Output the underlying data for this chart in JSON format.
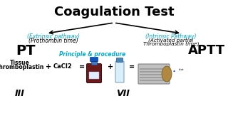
{
  "title": "Coagulation Test",
  "title_fontsize": 13,
  "title_fontweight": "bold",
  "title_color": "#000000",
  "bg_color": "#ffffff",
  "cyan_color": "#00AACC",
  "black_color": "#000000",
  "left_pathway_label": "(Extrinsic pathway)",
  "left_pathway_sub": "(Prothombin time)",
  "left_abbr": "PT",
  "right_pathway_label": "(Intrinsic Pathway)",
  "right_pathway_sub1": "(Activated partial",
  "right_pathway_sub2": "Thromboplastin time)",
  "right_abbr": "APTT",
  "principle_label": "Principle & procedure",
  "tissue_line1": "Tissue",
  "tissue_line2": "Thromboplastin",
  "plus1": "+",
  "cacl2": "CaCl2",
  "equals1": "=",
  "plus2": "+",
  "equals2": "=",
  "roman_left": "III",
  "roman_right": "VII",
  "clot_label": "clot"
}
